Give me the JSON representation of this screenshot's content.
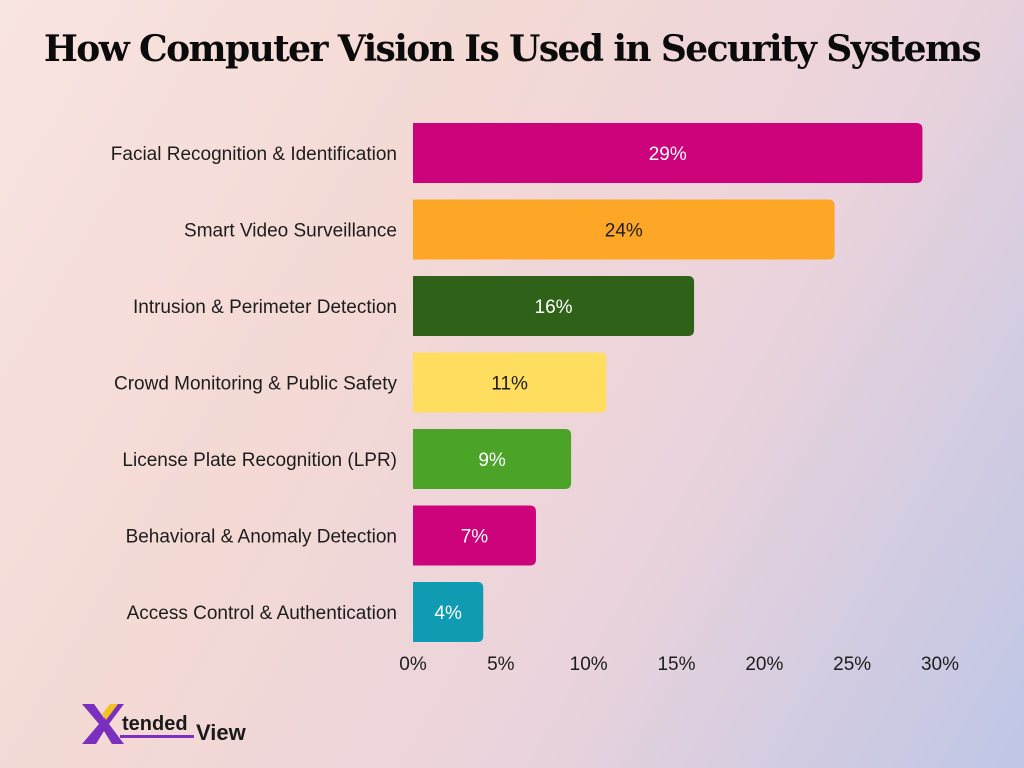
{
  "title": "How Computer Vision Is Used in Security Systems",
  "chart_data": {
    "type": "bar",
    "orientation": "horizontal",
    "categories": [
      "Facial Recognition & Identification",
      "Smart Video Surveillance",
      "Intrusion & Perimeter Detection",
      "Crowd Monitoring & Public Safety",
      "License Plate Recognition (LPR)",
      "Behavioral & Anomaly Detection",
      "Access Control & Authentication"
    ],
    "values": [
      29,
      24,
      16,
      11,
      9,
      7,
      4
    ],
    "value_labels": [
      "29%",
      "24%",
      "16%",
      "11%",
      "9%",
      "7%",
      "4%"
    ],
    "colors": [
      "#cc037b",
      "#fea727",
      "#2f6218",
      "#fedd5f",
      "#4ba428",
      "#cc037b",
      "#0f9cb2"
    ],
    "value_label_colors": [
      "#ffffff",
      "#1d1d1d",
      "#ffffff",
      "#1d1d1d",
      "#ffffff",
      "#ffffff",
      "#ffffff"
    ],
    "xlim": [
      0,
      30
    ],
    "xticks": [
      0,
      5,
      10,
      15,
      20,
      25,
      30
    ],
    "xtick_labels": [
      "0%",
      "5%",
      "10%",
      "15%",
      "20%",
      "25%",
      "30%"
    ],
    "grid": false,
    "legend": "none"
  },
  "logo": {
    "text_x": "X",
    "text_tended": "tended",
    "text_view": "View",
    "colors": {
      "x_primary": "#7b2fbf",
      "x_accent": "#f3c322",
      "text": "#1a1a1a"
    }
  }
}
